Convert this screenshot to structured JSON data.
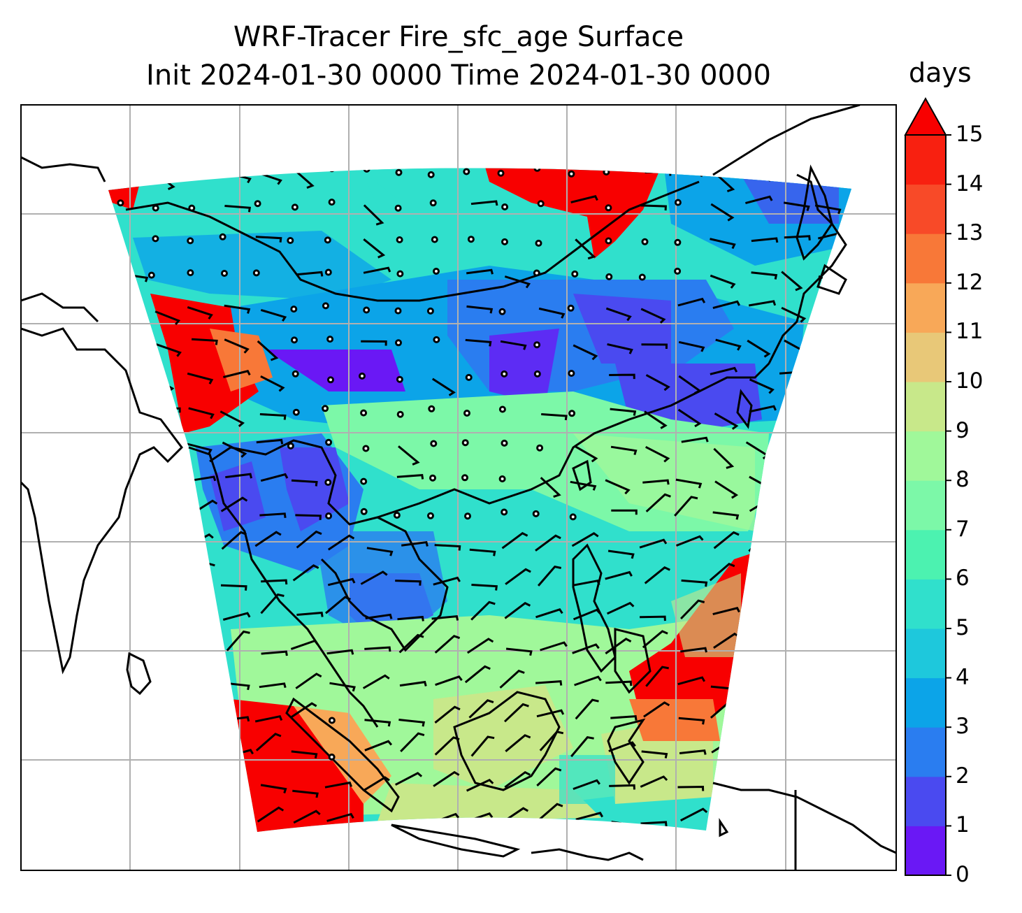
{
  "title": {
    "line1": "WRF-Tracer Fire_sfc_age Surface",
    "line2": "Init 2024-01-30 0000 Time 2024-01-30 0000"
  },
  "colorbar": {
    "units": "days",
    "min": 0,
    "max": 15,
    "extend": "max",
    "ticks": [
      "0",
      "1",
      "2",
      "3",
      "4",
      "5",
      "6",
      "7",
      "8",
      "9",
      "10",
      "11",
      "12",
      "13",
      "14",
      "15"
    ],
    "colors": [
      "#6a18f5",
      "#4a4af0",
      "#2a7df0",
      "#0ca4e8",
      "#1ec8dc",
      "#30e0cc",
      "#4cf2b0",
      "#7cf8a8",
      "#a0f89a",
      "#c8e88a",
      "#e8c878",
      "#f8a858",
      "#f87838",
      "#f84a28",
      "#f82010",
      "#f80000"
    ]
  },
  "map": {
    "projection": "Lambert conformal",
    "gridlines": true,
    "coastlines": true,
    "wind_barbs": true
  }
}
